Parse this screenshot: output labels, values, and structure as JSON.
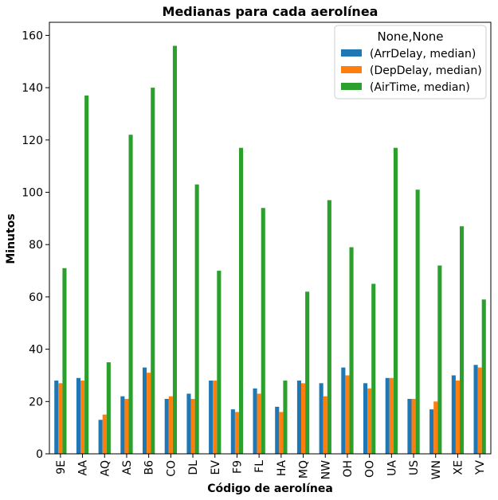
{
  "chart_data": {
    "type": "bar",
    "title": "Medianas para cada aerolínea",
    "xlabel": "Código de aerolínea",
    "ylabel": "Minutos",
    "ylim": [
      0,
      165
    ],
    "yticks": [
      0,
      20,
      40,
      60,
      80,
      100,
      120,
      140,
      160
    ],
    "grid": false,
    "legend": {
      "title": "None,None",
      "placement": "top-right"
    },
    "categories": [
      "9E",
      "AA",
      "AQ",
      "AS",
      "B6",
      "CO",
      "DL",
      "EV",
      "F9",
      "FL",
      "HA",
      "MQ",
      "NW",
      "OH",
      "OO",
      "UA",
      "US",
      "WN",
      "XE",
      "YV"
    ],
    "series": [
      {
        "name": "(ArrDelay, median)",
        "color": "#1f77b4",
        "values": [
          28,
          29,
          13,
          22,
          33,
          21,
          23,
          28,
          17,
          25,
          18,
          28,
          27,
          33,
          27,
          29,
          21,
          17,
          30,
          34
        ]
      },
      {
        "name": "(DepDelay, median)",
        "color": "#ff7f0e",
        "values": [
          27,
          28,
          15,
          21,
          31,
          22,
          21,
          28,
          16,
          23,
          16,
          27,
          22,
          30,
          25,
          29,
          21,
          20,
          28,
          33
        ]
      },
      {
        "name": "(AirTime, median)",
        "color": "#2ca02c",
        "values": [
          71,
          137,
          35,
          122,
          140,
          156,
          103,
          70,
          117,
          94,
          28,
          62,
          97,
          79,
          65,
          117,
          101,
          72,
          87,
          59
        ]
      }
    ]
  }
}
